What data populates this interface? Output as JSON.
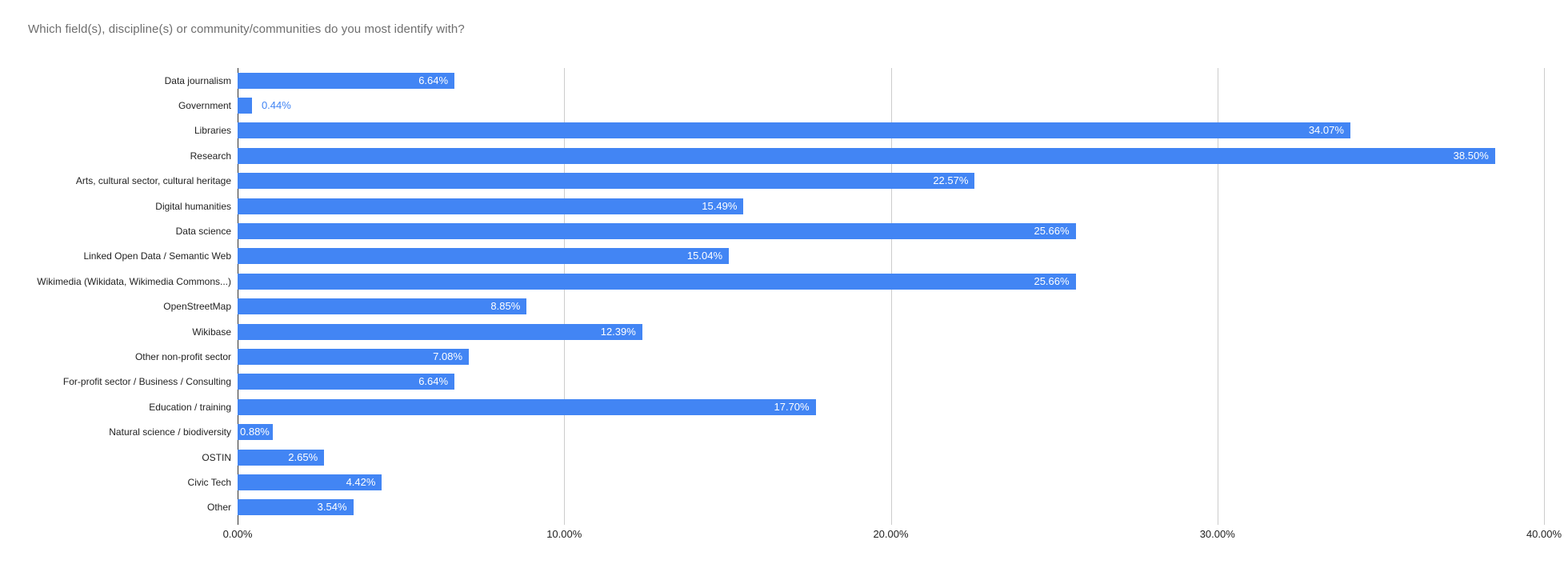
{
  "title": "Which field(s), discipline(s) or community/communities do you most identify with?",
  "colors": {
    "bar": "#4285f4",
    "gridline": "#cccccc",
    "baseline": "#333333",
    "title_text": "#6e6e6e",
    "axis_text": "#222222",
    "value_inside_text": "#ffffff",
    "value_outside_text": "#4285f4"
  },
  "chart_data": {
    "type": "bar",
    "orientation": "horizontal",
    "title": "Which field(s), discipline(s) or community/communities do you most identify with?",
    "xlabel": "",
    "ylabel": "",
    "xlim": [
      0,
      40
    ],
    "grid": true,
    "legend": "none",
    "x_ticks": [
      {
        "value": 0,
        "label": "0.00%"
      },
      {
        "value": 10,
        "label": "10.00%"
      },
      {
        "value": 20,
        "label": "20.00%"
      },
      {
        "value": 30,
        "label": "30.00%"
      },
      {
        "value": 40,
        "label": "40.00%"
      }
    ],
    "categories": [
      "Data journalism",
      "Government",
      "Libraries",
      "Research",
      "Arts, cultural sector, cultural heritage",
      "Digital humanities",
      "Data science",
      "Linked Open Data / Semantic Web",
      "Wikimedia (Wikidata, Wikimedia Commons...)",
      "OpenStreetMap",
      "Wikibase",
      "Other non-profit sector",
      "For-profit sector / Business / Consulting",
      "Education / training",
      "Natural science / biodiversity",
      "OSTIN",
      "Civic Tech",
      "Other"
    ],
    "values": [
      6.64,
      0.44,
      34.07,
      38.5,
      22.57,
      15.49,
      25.66,
      15.04,
      25.66,
      8.85,
      12.39,
      7.08,
      6.64,
      17.7,
      0.88,
      2.65,
      4.42,
      3.54
    ],
    "value_labels": [
      "6.64%",
      "0.44%",
      "34.07%",
      "38.50%",
      "22.57%",
      "15.49%",
      "25.66%",
      "15.04%",
      "25.66%",
      "8.85%",
      "12.39%",
      "7.08%",
      "6.64%",
      "17.70%",
      "0.88%",
      "2.65%",
      "4.42%",
      "3.54%"
    ],
    "value_label_placement": [
      "inside",
      "outside",
      "inside",
      "inside",
      "inside",
      "inside",
      "inside",
      "inside",
      "inside",
      "inside",
      "inside",
      "inside",
      "inside",
      "inside",
      "chip",
      "inside",
      "inside",
      "inside"
    ]
  }
}
